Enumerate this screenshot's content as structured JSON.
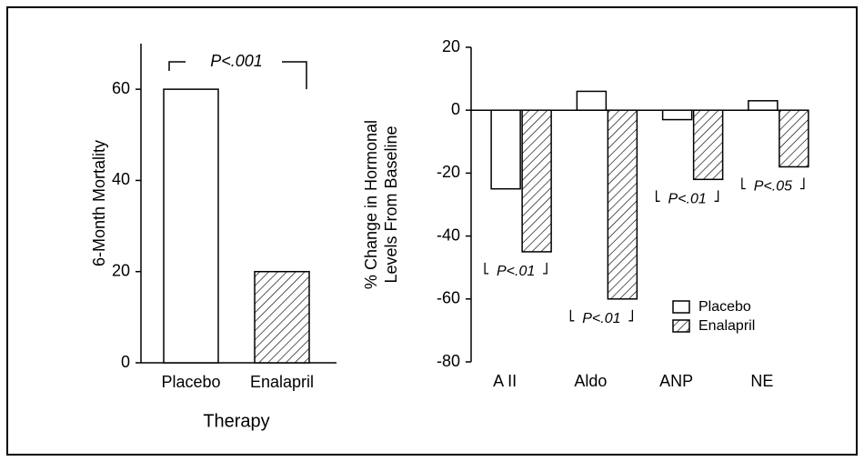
{
  "chart_data": [
    {
      "type": "bar",
      "categories": [
        "Placebo",
        "Enalapril"
      ],
      "values": [
        60,
        20
      ],
      "patterns": [
        "none",
        "hatch"
      ],
      "ylabel": [
        "6-Month Mortality"
      ],
      "xlabel": "Therapy",
      "ylim": [
        0,
        70
      ],
      "yticks": [
        0,
        20,
        40,
        60
      ],
      "annotation": "P<.001"
    },
    {
      "type": "grouped-bar",
      "categories": [
        "A II",
        "Aldo",
        "ANP",
        "NE"
      ],
      "series": [
        {
          "name": "Placebo",
          "pattern": "none",
          "values": [
            -25,
            6,
            -3,
            3
          ]
        },
        {
          "name": "Enalapril",
          "pattern": "hatch",
          "values": [
            -45,
            -60,
            -22,
            -18
          ]
        }
      ],
      "ylabel": [
        "% Change in Hormonal",
        "Levels From Baseline"
      ],
      "ylim": [
        -80,
        20
      ],
      "yticks": [
        -80,
        -60,
        -40,
        -20,
        0,
        20
      ],
      "annotations": [
        "P<.01",
        "P<.01",
        "P<.01",
        "P<.05"
      ],
      "legend": "lower right"
    }
  ]
}
